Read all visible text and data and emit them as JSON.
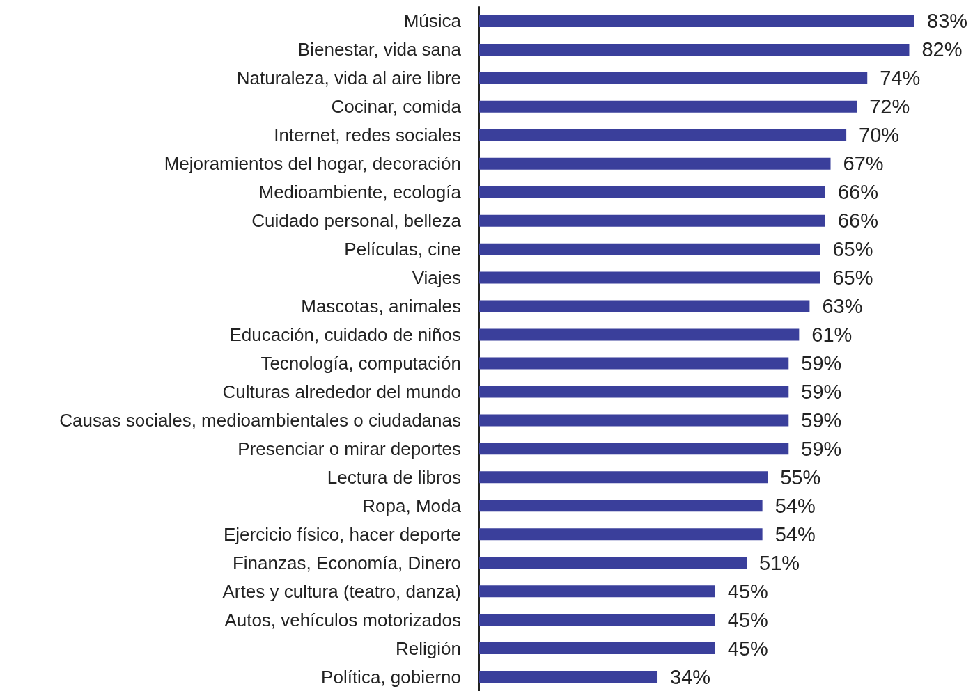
{
  "chart_data": {
    "type": "bar",
    "orientation": "horizontal",
    "categories": [
      "Música",
      "Bienestar, vida sana",
      "Naturaleza, vida al aire libre",
      "Cocinar, comida",
      "Internet, redes sociales",
      "Mejoramientos del hogar, decoración",
      "Medioambiente, ecología",
      "Cuidado personal, belleza",
      "Películas, cine",
      "Viajes",
      "Mascotas, animales",
      "Educación, cuidado de niños",
      "Tecnología, computación",
      "Culturas alrededor del mundo",
      "Causas sociales, medioambientales o ciudadanas",
      "Presenciar o mirar deportes",
      "Lectura de libros",
      "Ropa, Moda",
      "Ejercicio físico, hacer deporte",
      "Finanzas, Economía, Dinero",
      "Artes y cultura (teatro, danza)",
      "Autos, vehículos motorizados",
      "Religión",
      "Política, gobierno"
    ],
    "values": [
      83,
      82,
      74,
      72,
      70,
      67,
      66,
      66,
      65,
      65,
      63,
      61,
      59,
      59,
      59,
      59,
      55,
      54,
      54,
      51,
      45,
      45,
      45,
      34
    ],
    "value_labels": [
      "83%",
      "82%",
      "74%",
      "72%",
      "70%",
      "67%",
      "66%",
      "66%",
      "65%",
      "65%",
      "63%",
      "61%",
      "59%",
      "59%",
      "59%",
      "59%",
      "55%",
      "54%",
      "54%",
      "51%",
      "45%",
      "45%",
      "45%",
      "34%"
    ],
    "color": "#3a3f9b"
  }
}
